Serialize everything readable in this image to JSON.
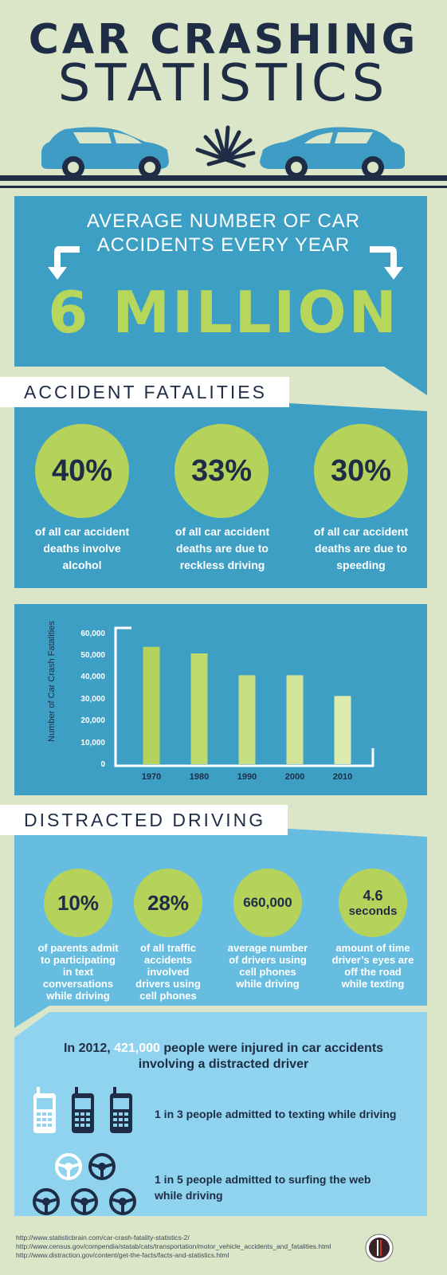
{
  "header": {
    "title_line1": "CAR CRASHING",
    "title_line2": "STATISTICS"
  },
  "colors": {
    "background": "#dbe6c8",
    "navy": "#1e2d45",
    "blue_panel": "#3e9fc5",
    "light_blue_panel": "#67bde0",
    "lime": "#b5d35a"
  },
  "average": {
    "heading_line1": "AVERAGE NUMBER OF CAR",
    "heading_line2": "ACCIDENTS EVERY YEAR",
    "value": "6 MILLION"
  },
  "fatalities": {
    "section_title": "ACCIDENT FATALITIES",
    "items": [
      {
        "percent": "40%",
        "line1": "of all car accident",
        "line2": "deaths involve",
        "line3": "alcohol"
      },
      {
        "percent": "33%",
        "line1": "of all car accident",
        "line2": "deaths are due to",
        "line3": "reckless driving"
      },
      {
        "percent": "30%",
        "line1": "of all car accident",
        "line2": "deaths are  due to",
        "line3": "speeding"
      }
    ]
  },
  "chart_data": {
    "type": "bar",
    "categories": [
      "1970",
      "1980",
      "1990",
      "2000",
      "2010"
    ],
    "values": [
      54500,
      51500,
      41500,
      41500,
      32000
    ],
    "ylabel": "Number of Car Crash Fatalities",
    "xlabel": "",
    "ylim": [
      0,
      65000
    ],
    "yticks": [
      "0",
      "10,000",
      "20,000",
      "30,000",
      "40,000",
      "50,000",
      "60,000"
    ],
    "bar_colors": [
      "#b5d35a",
      "#bfd96d",
      "#c8de82",
      "#d1e497",
      "#dbeaad"
    ],
    "grid": false
  },
  "distracted": {
    "section_title": "DISTRACTED DRIVING",
    "items": [
      {
        "value": "10%",
        "value2": "",
        "lines": [
          "of parents admit",
          "to participating",
          "in text",
          "conversations",
          "while driving"
        ]
      },
      {
        "value": "28%",
        "value2": "",
        "lines": [
          "of all traffic",
          "accidents",
          "involved",
          "drivers using",
          "cell phones"
        ]
      },
      {
        "value": "660,000",
        "value2": "",
        "lines": [
          "average number",
          "of drivers using",
          "cell phones",
          "while driving"
        ]
      },
      {
        "value": "4.6",
        "value2": "seconds",
        "lines": [
          "amount of time",
          "driver’s eyes are",
          "off the road",
          "while texting"
        ]
      }
    ]
  },
  "injured": {
    "prefix": "In 2012, ",
    "number": "421,000",
    "suffix": " people were injured in car accidents",
    "line2": "involving a distracted driver",
    "stat1": "1 in 3 people admitted to texting while driving",
    "stat2_line1": "1 in 5 people admitted to surfing the web",
    "stat2_line2": "while driving",
    "icons": [
      "phone-icon",
      "steering-wheel-icon"
    ]
  },
  "references": [
    "http://www.statisticbrain.com/car-crash-fatality-statistics-2/",
    "http://www.census.gov/compendia/statab/cats/transportation/motor_vehicle_accidents_and_fatalities.html",
    "http://www.distraction.gov/content/get-the-facts/facts-and-statistics.html"
  ]
}
